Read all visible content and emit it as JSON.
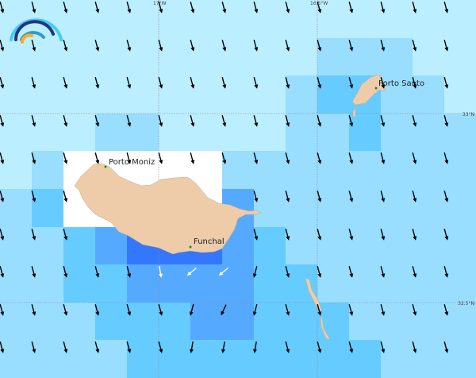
{
  "legend_levels": {
    "0": "#ffffff",
    "1": "#bbeeff",
    "2": "#99ddff",
    "3": "#66ccff",
    "4": "#55aaff",
    "5": "#3377ff"
  },
  "grid_levels": [
    [
      1,
      1,
      1,
      1,
      1,
      1,
      1,
      1,
      1,
      1,
      1,
      1,
      1,
      1,
      1
    ],
    [
      1,
      1,
      1,
      1,
      1,
      1,
      1,
      1,
      1,
      1,
      2,
      2,
      2,
      1,
      1
    ],
    [
      1,
      1,
      1,
      1,
      1,
      1,
      1,
      1,
      1,
      2,
      3,
      3,
      2,
      2,
      1
    ],
    [
      1,
      1,
      1,
      2,
      2,
      1,
      1,
      1,
      1,
      2,
      2,
      3,
      2,
      2,
      2
    ],
    [
      1,
      2,
      0,
      0,
      0,
      0,
      0,
      2,
      2,
      2,
      2,
      2,
      2,
      2,
      2
    ],
    [
      2,
      3,
      0,
      0,
      0,
      0,
      0,
      4,
      2,
      2,
      2,
      2,
      2,
      2,
      2
    ],
    [
      2,
      2,
      3,
      4,
      5,
      5,
      5,
      4,
      3,
      2,
      2,
      2,
      2,
      2,
      2
    ],
    [
      2,
      2,
      3,
      3,
      4,
      4,
      4,
      4,
      3,
      3,
      2,
      2,
      2,
      2,
      2
    ],
    [
      2,
      2,
      2,
      3,
      3,
      3,
      4,
      4,
      3,
      3,
      3,
      2,
      2,
      2,
      2
    ],
    [
      2,
      2,
      2,
      2,
      3,
      3,
      3,
      3,
      3,
      3,
      3,
      3,
      2,
      2,
      2
    ]
  ],
  "arrows": {
    "default_direction_deg": 165,
    "color": "#000000",
    "missing": [
      [
        5,
        3
      ],
      [
        5,
        4
      ],
      [
        5,
        5
      ],
      [
        5,
        6
      ],
      [
        5,
        7
      ],
      [
        6,
        3
      ],
      [
        6,
        4
      ],
      [
        6,
        5
      ],
      [
        6,
        6
      ],
      [
        6,
        7
      ]
    ],
    "overrides": [
      {
        "row": 7,
        "col": 5,
        "dir": 170,
        "color": "#ffffff"
      },
      {
        "row": 7,
        "col": 6,
        "dir": 230,
        "color": "#ffffff"
      },
      {
        "row": 7,
        "col": 7,
        "dir": 230,
        "color": "#ffffff"
      },
      {
        "row": 7,
        "col": 8,
        "dir": 195,
        "color": "#000000"
      },
      {
        "row": 8,
        "col": 6,
        "dir": 195,
        "color": "#000000"
      },
      {
        "row": 8,
        "col": 7,
        "dir": 205,
        "color": "#000000"
      },
      {
        "row": 8,
        "col": 8,
        "dir": 195,
        "color": "#000000"
      },
      {
        "row": 9,
        "col": 6,
        "dir": 190,
        "color": "#000000"
      },
      {
        "row": 9,
        "col": 7,
        "dir": 190,
        "color": "#000000"
      },
      {
        "row": 9,
        "col": 8,
        "dir": 190,
        "color": "#000000"
      }
    ]
  },
  "axes": {
    "lon_labels": [
      "17°W",
      "16.5°W"
    ],
    "lat_labels": [
      "33°N",
      "32.5°N"
    ]
  },
  "places": {
    "porto_moniz": "Porto Moniz",
    "funchal": "Funchal",
    "porto_santo": "Porto Santo"
  },
  "colors": {
    "land": "#eeccaa",
    "city_dot": "#119911",
    "gridline": "#888888"
  },
  "logo": {
    "colors": [
      "#44ccee",
      "#223388",
      "#3399cc",
      "#ffaa22"
    ]
  }
}
